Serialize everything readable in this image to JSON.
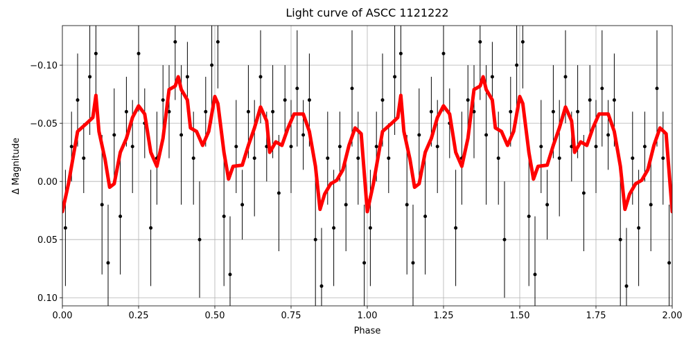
{
  "chart_data": {
    "type": "scatter",
    "title": "Light curve of ASCC 1121222",
    "xlabel": "Phase",
    "ylabel": "Δ Magnitude",
    "xlim": [
      0,
      2
    ],
    "ylim": [
      -0.134,
      0.107
    ],
    "y_inverted": true,
    "grid": true,
    "xticks": [
      {
        "value": 0,
        "label": "0.00"
      },
      {
        "value": 0.25,
        "label": "0.25"
      },
      {
        "value": 0.5,
        "label": "0.50"
      },
      {
        "value": 0.75,
        "label": "0.75"
      },
      {
        "value": 1,
        "label": "1.00"
      },
      {
        "value": 1.25,
        "label": "1.25"
      },
      {
        "value": 1.5,
        "label": "1.50"
      },
      {
        "value": 1.75,
        "label": "1.75"
      },
      {
        "value": 2,
        "label": "2.00"
      }
    ],
    "yticks": [
      {
        "value": -0.1,
        "label": "−0.10"
      },
      {
        "value": -0.05,
        "label": "−0.05"
      },
      {
        "value": 0,
        "label": "0.00"
      },
      {
        "value": 0.05,
        "label": "0.05"
      },
      {
        "value": 0.1,
        "label": "0.10"
      }
    ],
    "points": {
      "color": "#000000",
      "x": [
        0.01,
        0.03,
        0.05,
        0.07,
        0.09,
        0.11,
        0.13,
        0.15,
        0.17,
        0.19,
        0.21,
        0.23,
        0.25,
        0.27,
        0.29,
        0.31,
        0.33,
        0.35,
        0.37,
        0.39,
        0.41,
        0.43,
        0.45,
        0.47,
        0.49,
        0.51,
        0.53,
        0.55,
        0.57,
        0.59,
        0.61,
        0.63,
        0.65,
        0.67,
        0.69,
        0.71,
        0.73,
        0.75,
        0.77,
        0.79,
        0.81,
        0.83,
        0.85,
        0.87,
        0.89,
        0.91,
        0.93,
        0.95,
        0.97,
        0.99,
        1.01,
        1.03,
        1.05,
        1.07,
        1.09,
        1.11,
        1.13,
        1.15,
        1.17,
        1.19,
        1.21,
        1.23,
        1.25,
        1.27,
        1.29,
        1.31,
        1.33,
        1.35,
        1.37,
        1.39,
        1.41,
        1.43,
        1.45,
        1.47,
        1.49,
        1.51,
        1.53,
        1.55,
        1.57,
        1.59,
        1.61,
        1.63,
        1.65,
        1.67,
        1.69,
        1.71,
        1.73,
        1.75,
        1.77,
        1.79,
        1.81,
        1.83,
        1.85,
        1.87,
        1.89,
        1.91,
        1.93,
        1.95,
        1.97,
        1.99
      ],
      "values": [
        0.04,
        -0.03,
        -0.07,
        -0.02,
        -0.09,
        -0.11,
        0.02,
        0.07,
        -0.04,
        0.03,
        -0.06,
        -0.03,
        -0.11,
        -0.05,
        0.04,
        -0.02,
        -0.07,
        -0.06,
        -0.12,
        -0.04,
        -0.09,
        -0.02,
        0.05,
        -0.06,
        -0.1,
        -0.12,
        0.03,
        0.08,
        -0.03,
        0.02,
        -0.06,
        -0.02,
        -0.09,
        -0.03,
        -0.06,
        0.01,
        -0.07,
        -0.03,
        -0.08,
        -0.04,
        -0.07,
        0.05,
        0.09,
        -0.02,
        0.04,
        -0.03,
        0.02,
        -0.08,
        -0.02,
        0.07,
        0.04,
        -0.03,
        -0.07,
        -0.02,
        -0.09,
        -0.11,
        0.02,
        0.07,
        -0.04,
        0.03,
        -0.06,
        -0.03,
        -0.11,
        -0.05,
        0.04,
        -0.02,
        -0.07,
        -0.06,
        -0.12,
        -0.04,
        -0.09,
        -0.02,
        0.05,
        -0.06,
        -0.1,
        -0.12,
        0.03,
        0.08,
        -0.03,
        0.02,
        -0.06,
        -0.02,
        -0.09,
        -0.03,
        -0.06,
        0.01,
        -0.07,
        -0.03,
        -0.08,
        -0.04,
        -0.07,
        0.05,
        0.09,
        -0.02,
        0.04,
        -0.03,
        0.02,
        -0.08,
        -0.02,
        0.07
      ],
      "errors": [
        0.05,
        0.03,
        0.04,
        0.03,
        0.05,
        0.04,
        0.06,
        0.05,
        0.04,
        0.05,
        0.03,
        0.04,
        0.05,
        0.03,
        0.05,
        0.04,
        0.03,
        0.04,
        0.05,
        0.06,
        0.03,
        0.04,
        0.05,
        0.03,
        0.05,
        0.04,
        0.06,
        0.05,
        0.04,
        0.03,
        0.04,
        0.05,
        0.04,
        0.03,
        0.04,
        0.05,
        0.03,
        0.04,
        0.05,
        0.03,
        0.04,
        0.06,
        0.05,
        0.04,
        0.05,
        0.03,
        0.04,
        0.05,
        0.04,
        0.05,
        0.05,
        0.03,
        0.04,
        0.03,
        0.05,
        0.04,
        0.06,
        0.05,
        0.04,
        0.05,
        0.03,
        0.04,
        0.05,
        0.03,
        0.05,
        0.04,
        0.03,
        0.04,
        0.05,
        0.06,
        0.03,
        0.04,
        0.05,
        0.03,
        0.05,
        0.04,
        0.06,
        0.05,
        0.04,
        0.03,
        0.04,
        0.05,
        0.04,
        0.03,
        0.04,
        0.05,
        0.03,
        0.04,
        0.05,
        0.03,
        0.04,
        0.06,
        0.05,
        0.04,
        0.05,
        0.03,
        0.04,
        0.05,
        0.04,
        0.05
      ]
    },
    "model": {
      "color": "#ff0000",
      "x": [
        0,
        0.02,
        0.05,
        0.08,
        0.1,
        0.11,
        0.12,
        0.14,
        0.155,
        0.17,
        0.19,
        0.21,
        0.23,
        0.25,
        0.27,
        0.29,
        0.31,
        0.33,
        0.35,
        0.37,
        0.38,
        0.39,
        0.41,
        0.42,
        0.44,
        0.46,
        0.48,
        0.5,
        0.51,
        0.53,
        0.545,
        0.56,
        0.59,
        0.61,
        0.63,
        0.65,
        0.67,
        0.68,
        0.7,
        0.72,
        0.74,
        0.76,
        0.79,
        0.81,
        0.83,
        0.845,
        0.86,
        0.88,
        0.9,
        0.92,
        0.94,
        0.96,
        0.98,
        1,
        1.02,
        1.05,
        1.08,
        1.1,
        1.11,
        1.12,
        1.14,
        1.155,
        1.17,
        1.19,
        1.21,
        1.23,
        1.25,
        1.27,
        1.29,
        1.31,
        1.33,
        1.35,
        1.37,
        1.38,
        1.39,
        1.41,
        1.42,
        1.44,
        1.46,
        1.48,
        1.5,
        1.51,
        1.53,
        1.545,
        1.56,
        1.59,
        1.61,
        1.63,
        1.65,
        1.67,
        1.68,
        1.7,
        1.72,
        1.74,
        1.76,
        1.79,
        1.81,
        1.83,
        1.845,
        1.86,
        1.88,
        1.9,
        1.92,
        1.94,
        1.96,
        1.98,
        2
      ],
      "values": [
        0.026,
        0.002,
        -0.043,
        -0.05,
        -0.055,
        -0.074,
        -0.043,
        -0.019,
        0.005,
        0.002,
        -0.025,
        -0.037,
        -0.055,
        -0.065,
        -0.058,
        -0.025,
        -0.013,
        -0.037,
        -0.079,
        -0.082,
        -0.09,
        -0.079,
        -0.07,
        -0.046,
        -0.043,
        -0.031,
        -0.043,
        -0.073,
        -0.067,
        -0.025,
        -0.002,
        -0.013,
        -0.014,
        -0.031,
        -0.046,
        -0.064,
        -0.052,
        -0.025,
        -0.034,
        -0.031,
        -0.046,
        -0.058,
        -0.058,
        -0.043,
        -0.013,
        0.024,
        0.011,
        0.002,
        -0.001,
        -0.01,
        -0.031,
        -0.046,
        -0.041,
        0.026,
        0.002,
        -0.043,
        -0.05,
        -0.055,
        -0.074,
        -0.043,
        -0.019,
        0.005,
        0.002,
        -0.025,
        -0.037,
        -0.055,
        -0.065,
        -0.058,
        -0.025,
        -0.013,
        -0.037,
        -0.079,
        -0.082,
        -0.09,
        -0.079,
        -0.07,
        -0.046,
        -0.043,
        -0.031,
        -0.043,
        -0.073,
        -0.067,
        -0.025,
        -0.002,
        -0.013,
        -0.014,
        -0.031,
        -0.046,
        -0.064,
        -0.052,
        -0.025,
        -0.034,
        -0.031,
        -0.046,
        -0.058,
        -0.058,
        -0.043,
        -0.013,
        0.024,
        0.011,
        0.002,
        -0.001,
        -0.01,
        -0.031,
        -0.046,
        -0.041,
        0.026
      ]
    }
  }
}
